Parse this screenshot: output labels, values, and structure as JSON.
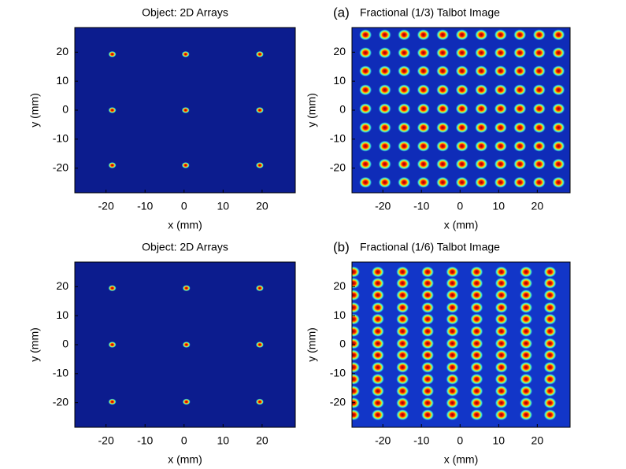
{
  "chart_data": [
    {
      "type": "image",
      "title": "Object: 2D Arrays",
      "xlabel": "x (mm)",
      "ylabel": "y (mm)",
      "xlim": [
        -28,
        28.5
      ],
      "ylim": [
        -28.5,
        28.5
      ],
      "xticks": [
        -20,
        -10,
        0,
        10,
        20
      ],
      "yticks": [
        -20,
        -10,
        0,
        10,
        20
      ],
      "background": "#0c1c8e",
      "spot_x": [
        -18.4,
        0.4,
        19.4
      ],
      "spot_y": [
        19.3,
        0,
        -19
      ]
    },
    {
      "type": "image",
      "panel_label": "(a)",
      "title": "Fractional (1/3) Talbot Image",
      "xlabel": "x (mm)",
      "ylabel": "y (mm)",
      "xlim": [
        -28,
        28.5
      ],
      "ylim": [
        -28.5,
        28.5
      ],
      "xticks": [
        -20,
        -10,
        0,
        10,
        20
      ],
      "yticks": [
        -20,
        -10,
        0,
        10,
        20
      ],
      "background": "#0f2cb8",
      "spot_x": [
        -24.5,
        -19.5,
        -14.5,
        -9.5,
        -4.5,
        0.5,
        5.5,
        10.5,
        15.5,
        20.5,
        25.5
      ],
      "spot_y": [
        26,
        19.8,
        13.5,
        7,
        0.5,
        -6,
        -12.4,
        -18.6,
        -24.9
      ]
    },
    {
      "type": "image",
      "title": "Object: 2D Arrays",
      "xlabel": "x (mm)",
      "ylabel": "y (mm)",
      "xlim": [
        -28,
        28.5
      ],
      "ylim": [
        -28.5,
        28.5
      ],
      "xticks": [
        -20,
        -10,
        0,
        10,
        20
      ],
      "yticks": [
        -20,
        -10,
        0,
        10,
        20
      ],
      "background": "#0c1c8e",
      "spot_x": [
        -18.4,
        0.6,
        19.4
      ],
      "spot_y": [
        19.5,
        0,
        -19.7
      ]
    },
    {
      "type": "image",
      "panel_label": "(b)",
      "title": "Fractional (1/6) Talbot Image",
      "xlabel": "x (mm)",
      "ylabel": "y (mm)",
      "xlim": [
        -28,
        28.5
      ],
      "ylim": [
        -28.5,
        28.5
      ],
      "xticks": [
        -20,
        -10,
        0,
        10,
        20
      ],
      "yticks": [
        -20,
        -10,
        0,
        10,
        20
      ],
      "background": "#1236c8",
      "spot_x": [
        -27.6,
        -21.3,
        -14.9,
        -8.4,
        -2,
        4.3,
        10.7,
        17.1,
        23.3
      ],
      "spot_y": [
        25.1,
        21.2,
        17.1,
        12.8,
        8.8,
        4.6,
        0.4,
        -3.6,
        -7.8,
        -11.9,
        -16,
        -20.1,
        -24.2
      ]
    }
  ]
}
